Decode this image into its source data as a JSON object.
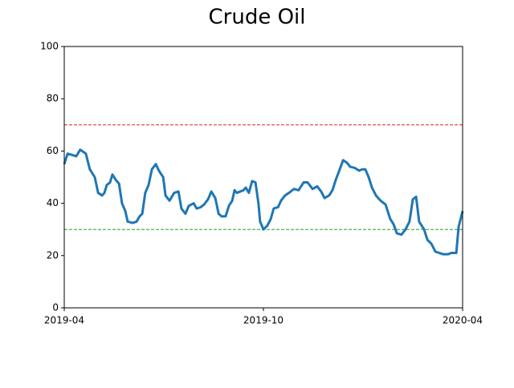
{
  "chart_data": {
    "type": "line",
    "title": "Crude Oil",
    "x": [
      0,
      0.1,
      0.24,
      0.36,
      0.48,
      0.65,
      0.77,
      0.92,
      1.02,
      1.14,
      1.21,
      1.28,
      1.38,
      1.45,
      1.55,
      1.65,
      1.74,
      1.84,
      1.91,
      2.06,
      2.18,
      2.27,
      2.35,
      2.44,
      2.54,
      2.64,
      2.76,
      2.85,
      2.98,
      3.05,
      3.17,
      3.31,
      3.44,
      3.53,
      3.65,
      3.75,
      3.9,
      3.99,
      4.11,
      4.21,
      4.33,
      4.43,
      4.55,
      4.65,
      4.74,
      4.86,
      4.96,
      5.06,
      5.13,
      5.2,
      5.4,
      5.47,
      5.56,
      5.66,
      5.76,
      5.85,
      5.9,
      6,
      6.12,
      6.22,
      6.31,
      6.44,
      6.53,
      6.65,
      6.77,
      6.92,
      7.06,
      7.21,
      7.33,
      7.48,
      7.62,
      7.74,
      7.84,
      7.98,
      8.08,
      8.18,
      8.27,
      8.4,
      8.52,
      8.61,
      8.76,
      8.88,
      8.98,
      9.07,
      9.17,
      9.27,
      9.39,
      9.53,
      9.68,
      9.82,
      9.92,
      10.02,
      10.16,
      10.28,
      10.4,
      10.5,
      10.6,
      10.69,
      10.84,
      10.94,
      11.06,
      11.18,
      11.3,
      11.42,
      11.56,
      11.66,
      11.81,
      11.88,
      12
    ],
    "series": [
      {
        "color": "#1f77b4",
        "values": [
          55,
          59,
          58.5,
          58,
          60.5,
          59,
          53,
          50,
          44,
          43,
          44,
          47,
          48,
          51,
          49,
          47.5,
          40,
          37,
          33,
          32.5,
          33,
          35,
          36,
          44,
          47,
          53,
          55,
          52.5,
          50,
          43,
          41,
          44,
          44.5,
          38,
          36,
          39,
          40,
          38,
          38.5,
          39.5,
          41.5,
          44.5,
          42,
          36,
          35,
          35,
          39,
          41,
          45,
          44,
          45,
          46,
          44,
          48.5,
          48,
          40,
          33,
          30,
          31.5,
          34,
          38,
          38.5,
          41,
          43,
          44,
          45.5,
          45,
          48,
          48,
          45.5,
          46.5,
          44.5,
          42,
          43,
          45,
          49,
          52,
          56.5,
          55.5,
          54,
          53.5,
          52.5,
          53,
          53,
          50,
          46,
          43,
          41,
          39.5,
          34,
          32,
          28.5,
          28,
          30,
          33,
          41.5,
          42.5,
          33,
          30,
          26,
          24.5,
          21.5,
          21,
          20.5,
          20.5,
          21,
          21,
          31,
          37
        ]
      }
    ],
    "xlim": [
      0,
      12
    ],
    "xticks": [
      {
        "value": 0,
        "label": "2019-04"
      },
      {
        "value": 6,
        "label": "2019-10"
      },
      {
        "value": 12,
        "label": "2020-04"
      }
    ],
    "ylim": [
      0,
      100
    ],
    "yticks": [
      0,
      20,
      40,
      60,
      80,
      100
    ],
    "hlines": [
      {
        "value": 70,
        "color": "#d62728"
      },
      {
        "value": 30,
        "color": "#2ca02c"
      }
    ]
  }
}
